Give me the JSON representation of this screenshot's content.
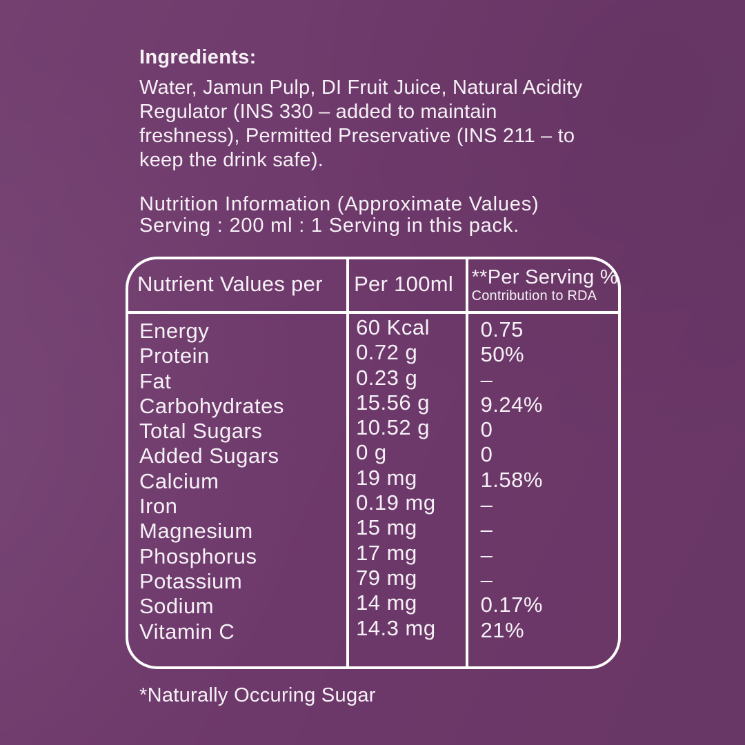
{
  "colors": {
    "background": "#6e396b",
    "text": "#f6f1f6",
    "table_border": "#ffffff"
  },
  "ingredients": {
    "heading": "Ingredients:",
    "lines": [
      "Water, Jamun Pulp, DI Fruit Juice, Natural Acidity",
      "Regulator (INS 330 – added to maintain",
      "freshness), Permitted Preservative (INS 211 – to",
      "keep the drink safe)."
    ]
  },
  "intro": {
    "line1": "Nutrition Information (Approximate Values)",
    "line2": "Serving : 200 ml : 1 Serving in this pack."
  },
  "table": {
    "headers": {
      "col1": "Nutrient Values per",
      "col2": "Per 100ml",
      "col3_line1": "**Per Serving %",
      "col3_line2": "Contribution to RDA"
    },
    "rows": [
      {
        "nutrient": "Energy",
        "per_100ml": "60 Kcal",
        "per_serving": "0.75"
      },
      {
        "nutrient": "Protein",
        "per_100ml": "0.72 g",
        "per_serving": "50%"
      },
      {
        "nutrient": "Fat",
        "per_100ml": "0.23 g",
        "per_serving": "–"
      },
      {
        "nutrient": "Carbohydrates",
        "per_100ml": "15.56 g",
        "per_serving": "9.24%"
      },
      {
        "nutrient": "Total Sugars",
        "per_100ml": "10.52 g",
        "per_serving": "0"
      },
      {
        "nutrient": "Added Sugars",
        "per_100ml": "0 g",
        "per_serving": "0"
      },
      {
        "nutrient": "Calcium",
        "per_100ml": "19 mg",
        "per_serving": "1.58%"
      },
      {
        "nutrient": "Iron",
        "per_100ml": "0.19 mg",
        "per_serving": "–"
      },
      {
        "nutrient": "Magnesium",
        "per_100ml": "15 mg",
        "per_serving": "–"
      },
      {
        "nutrient": "Phosphorus",
        "per_100ml": "17 mg",
        "per_serving": "–"
      },
      {
        "nutrient": "Potassium",
        "per_100ml": "79 mg",
        "per_serving": "–"
      },
      {
        "nutrient": "Sodium",
        "per_100ml": "14 mg",
        "per_serving": "0.17%"
      },
      {
        "nutrient": "Vitamin C",
        "per_100ml": "14.3 mg",
        "per_serving": "21%"
      }
    ]
  },
  "footnote": "*Naturally Occuring Sugar"
}
